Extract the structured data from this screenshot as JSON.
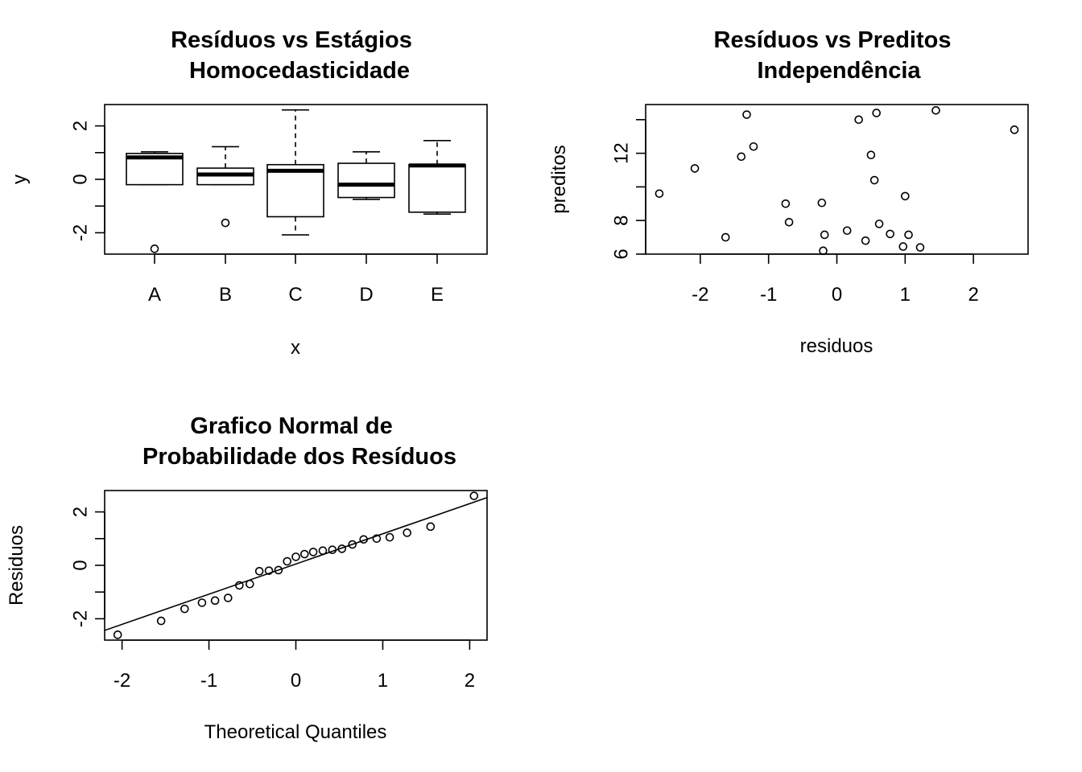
{
  "chart_data": [
    {
      "type": "box",
      "title": [
        "Resíduos vs Estágios",
        "Homocedasticidade"
      ],
      "xlabel": "x",
      "ylabel": "y",
      "categories": [
        "A",
        "B",
        "C",
        "D",
        "E"
      ],
      "boxes": [
        {
          "whisker_low": -0.2,
          "q1": -0.2,
          "median": 0.82,
          "q3": 0.97,
          "whisker_high": 1.03,
          "outliers": [
            -2.6
          ]
        },
        {
          "whisker_low": -0.2,
          "q1": -0.2,
          "median": 0.18,
          "q3": 0.42,
          "whisker_high": 1.22,
          "outliers": [
            -1.63
          ]
        },
        {
          "whisker_low": -2.08,
          "q1": -1.4,
          "median": 0.32,
          "q3": 0.55,
          "whisker_high": 2.6,
          "outliers": []
        },
        {
          "whisker_low": -0.75,
          "q1": -0.68,
          "median": -0.2,
          "q3": 0.6,
          "whisker_high": 1.03,
          "outliers": []
        },
        {
          "whisker_low": -1.3,
          "q1": -1.23,
          "median": 0.52,
          "q3": 0.55,
          "whisker_high": 1.45,
          "outliers": []
        }
      ],
      "yticks": [
        "-2",
        "0",
        "2"
      ],
      "ylim": [
        -2.8,
        2.8
      ]
    },
    {
      "type": "scatter",
      "title": [
        "Resíduos vs Preditos",
        "Independência"
      ],
      "xlabel": "residuos",
      "ylabel": "preditos",
      "xticks": [
        "-2",
        "-1",
        "0",
        "1",
        "2"
      ],
      "yticks": [
        "6",
        "8",
        "12"
      ],
      "xlim": [
        -2.8,
        2.8
      ],
      "ylim": [
        6,
        14.9
      ],
      "points": [
        {
          "x": -2.6,
          "y": 9.6
        },
        {
          "x": -2.08,
          "y": 11.1
        },
        {
          "x": -1.63,
          "y": 7.0
        },
        {
          "x": -1.4,
          "y": 11.8
        },
        {
          "x": -1.32,
          "y": 14.3
        },
        {
          "x": -1.22,
          "y": 12.4
        },
        {
          "x": -0.75,
          "y": 9.0
        },
        {
          "x": -0.7,
          "y": 7.9
        },
        {
          "x": -0.22,
          "y": 9.05
        },
        {
          "x": -0.2,
          "y": 6.2
        },
        {
          "x": -0.18,
          "y": 7.15
        },
        {
          "x": 0.15,
          "y": 7.4
        },
        {
          "x": 0.32,
          "y": 14.0
        },
        {
          "x": 0.42,
          "y": 6.8
        },
        {
          "x": 0.5,
          "y": 11.9
        },
        {
          "x": 0.55,
          "y": 10.4
        },
        {
          "x": 0.58,
          "y": 14.4
        },
        {
          "x": 0.62,
          "y": 7.8
        },
        {
          "x": 0.78,
          "y": 7.2
        },
        {
          "x": 0.97,
          "y": 6.45
        },
        {
          "x": 1.0,
          "y": 9.45
        },
        {
          "x": 1.05,
          "y": 7.15
        },
        {
          "x": 1.22,
          "y": 6.4
        },
        {
          "x": 1.45,
          "y": 14.55
        },
        {
          "x": 2.6,
          "y": 13.4
        }
      ]
    },
    {
      "type": "qq",
      "title": [
        "Grafico Normal de",
        "Probabilidade dos Resíduos"
      ],
      "xlabel": "Theoretical Quantiles",
      "ylabel": "Residuos",
      "xticks": [
        "-2",
        "-1",
        "0",
        "1",
        "2"
      ],
      "yticks": [
        "-2",
        "0",
        "2"
      ],
      "xlim": [
        -2.2,
        2.2
      ],
      "ylim": [
        -2.8,
        2.8
      ],
      "points": [
        {
          "x": -2.05,
          "y": -2.6
        },
        {
          "x": -1.55,
          "y": -2.08
        },
        {
          "x": -1.28,
          "y": -1.63
        },
        {
          "x": -1.08,
          "y": -1.4
        },
        {
          "x": -0.93,
          "y": -1.32
        },
        {
          "x": -0.78,
          "y": -1.22
        },
        {
          "x": -0.65,
          "y": -0.75
        },
        {
          "x": -0.53,
          "y": -0.7
        },
        {
          "x": -0.42,
          "y": -0.22
        },
        {
          "x": -0.31,
          "y": -0.2
        },
        {
          "x": -0.2,
          "y": -0.18
        },
        {
          "x": -0.1,
          "y": 0.15
        },
        {
          "x": 0.0,
          "y": 0.32
        },
        {
          "x": 0.1,
          "y": 0.42
        },
        {
          "x": 0.2,
          "y": 0.5
        },
        {
          "x": 0.31,
          "y": 0.55
        },
        {
          "x": 0.42,
          "y": 0.58
        },
        {
          "x": 0.53,
          "y": 0.62
        },
        {
          "x": 0.65,
          "y": 0.78
        },
        {
          "x": 0.78,
          "y": 0.97
        },
        {
          "x": 0.93,
          "y": 1.0
        },
        {
          "x": 1.08,
          "y": 1.05
        },
        {
          "x": 1.28,
          "y": 1.22
        },
        {
          "x": 1.55,
          "y": 1.45
        },
        {
          "x": 2.05,
          "y": 2.6
        }
      ],
      "qqline": {
        "intercept": 0.05,
        "slope": 1.13
      }
    }
  ]
}
